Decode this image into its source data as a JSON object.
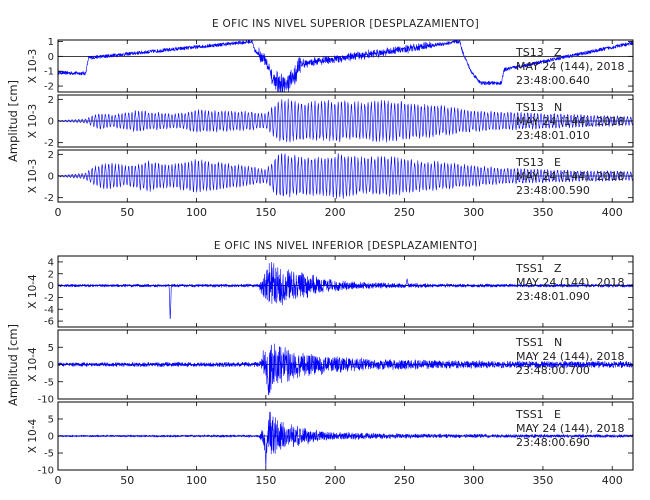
{
  "chart_data": [
    {
      "type": "line",
      "title": "E OFIC INS NIVEL SUPERIOR [DESPLAZAMIENTO]",
      "ylabel": "Amplitud [cm]",
      "xlim": [
        0,
        415
      ],
      "xticks": [
        0,
        50,
        100,
        150,
        200,
        250,
        300,
        350,
        400
      ],
      "trace_color": "#0000ff",
      "panels": [
        {
          "scale": "X 10-3",
          "ylim": [
            -2.4,
            1.1
          ],
          "yticks": [
            1,
            0,
            -1,
            -2
          ],
          "station": "TS13",
          "component": "Z",
          "date": "MAY 24 (144), 2018",
          "time": "23:48:00.640",
          "series": [
            {
              "x": [
                0,
                20,
                22,
                140,
                142,
                150,
                155,
                160,
                165,
                170,
                175,
                290,
                292,
                298,
                305,
                320,
                322,
                415
              ],
              "y": [
                -1.1,
                -1.15,
                -0.1,
                1.0,
                0.4,
                -0.3,
                -1.6,
                -1.9,
                -2.0,
                -1.4,
                -0.5,
                1.0,
                0.3,
                -1.0,
                -1.8,
                -1.8,
                -0.9,
                0.9
              ]
            }
          ],
          "noise": 0.12,
          "spikes": [
            {
              "x": [
                145,
                158
              ],
              "amp": 0.4
            },
            {
              "x": [
                158,
                175
              ],
              "amp": 0.7
            },
            {
              "x": [
                175,
                270
              ],
              "amp": 0.2
            }
          ]
        },
        {
          "scale": "X 10-3",
          "ylim": [
            -2.4,
            2.4
          ],
          "yticks": [
            2,
            0,
            -2
          ],
          "station": "TS13",
          "component": "N",
          "date": "MAY 24 (144), 2018",
          "time": "23:48:01.010",
          "envelope": {
            "x": [
              0,
              20,
              25,
              30,
              40,
              55,
              70,
              85,
              100,
              120,
              140,
              150,
              158,
              162,
              168,
              175,
              185,
              200,
              215,
              230,
              245,
              260,
              275,
              290,
              300,
              320,
              340,
              360,
              380,
              400,
              415
            ],
            "y": [
              0.05,
              0.2,
              0.5,
              0.8,
              0.6,
              1.0,
              0.9,
              0.7,
              1.1,
              1.0,
              0.9,
              0.7,
              1.8,
              2.2,
              2.0,
              1.9,
              1.9,
              2.0,
              1.8,
              2.0,
              1.9,
              1.7,
              1.5,
              1.2,
              1.0,
              0.9,
              0.8,
              0.7,
              0.6,
              0.5,
              0.4
            ]
          },
          "period": 2.4
        },
        {
          "scale": "X 10-3",
          "ylim": [
            -2.4,
            2.4
          ],
          "yticks": [
            2,
            0,
            -2
          ],
          "station": "TS13",
          "component": "E",
          "date": "MAY 24 (144), 2018",
          "time": "23:48:00.590",
          "envelope": {
            "x": [
              0,
              20,
              25,
              35,
              50,
              65,
              80,
              100,
              120,
              140,
              150,
              158,
              162,
              168,
              175,
              190,
              205,
              220,
              240,
              260,
              280,
              300,
              320,
              340,
              360,
              380,
              400,
              415
            ],
            "y": [
              0.05,
              0.3,
              0.9,
              1.3,
              1.0,
              1.5,
              1.1,
              1.6,
              1.3,
              0.9,
              0.6,
              2.0,
              2.3,
              2.1,
              1.8,
              1.9,
              2.2,
              1.8,
              1.9,
              1.5,
              1.3,
              1.0,
              0.8,
              0.7,
              0.6,
              0.5,
              0.5,
              0.4
            ]
          },
          "period": 2.4
        }
      ]
    },
    {
      "type": "line",
      "title": "E OFIC INS NIVEL INFERIOR [DESPLAZAMIENTO]",
      "ylabel": "Amplitud [cm]",
      "xlim": [
        0,
        415
      ],
      "xticks": [
        0,
        50,
        100,
        150,
        200,
        250,
        300,
        350,
        400
      ],
      "trace_color": "#0000ff",
      "panels": [
        {
          "scale": "X 10-4",
          "ylim": [
            -7,
            5
          ],
          "yticks": [
            4,
            2,
            0,
            -2,
            -4,
            -6
          ],
          "station": "TSS1",
          "component": "Z",
          "date": "MAY 24 (144), 2018",
          "time": "23:48:01.090",
          "envelope": {
            "x": [
              0,
              145,
              148,
              152,
              158,
              165,
              175,
              190,
              210,
              230,
              260,
              300,
              415
            ],
            "y": [
              0.25,
              0.3,
              2.5,
              4.5,
              4.0,
              3.5,
              2.5,
              1.5,
              0.8,
              0.5,
              0.4,
              0.3,
              0.3
            ]
          },
          "events": [
            {
              "x": 81,
              "y": -6.2
            },
            {
              "x": 252,
              "y": 1.2
            }
          ]
        },
        {
          "scale": "X 10-4",
          "ylim": [
            -10,
            10
          ],
          "yticks": [
            5,
            0,
            -5,
            -10
          ],
          "station": "TSS1",
          "component": "N",
          "date": "MAY 24 (144), 2018",
          "time": "23:48:00.700",
          "envelope": {
            "x": [
              0,
              145,
              148,
              152,
              156,
              162,
              170,
              185,
              200,
              230,
              260,
              300,
              415
            ],
            "y": [
              0.6,
              0.8,
              4.0,
              9.0,
              7.0,
              6.0,
              4.5,
              3.5,
              2.5,
              1.8,
              1.5,
              1.2,
              1.0
            ]
          },
          "events": [
            {
              "x": 152,
              "y": -9.5
            }
          ]
        },
        {
          "scale": "X 10-4",
          "ylim": [
            -10,
            10
          ],
          "yticks": [
            5,
            0,
            -5,
            -10
          ],
          "station": "TSS1",
          "component": "E",
          "date": "MAY 24 (144), 2018",
          "time": "23:48:00.690",
          "envelope": {
            "x": [
              0,
              145,
              148,
              152,
              156,
              162,
              170,
              185,
              200,
              230,
              260,
              300,
              415
            ],
            "y": [
              0.3,
              0.4,
              3.0,
              9.0,
              6.5,
              5.0,
              3.5,
              2.0,
              1.2,
              0.9,
              0.7,
              0.6,
              0.5
            ]
          },
          "events": [
            {
              "x": 150,
              "y": -9.5
            }
          ]
        }
      ]
    }
  ]
}
